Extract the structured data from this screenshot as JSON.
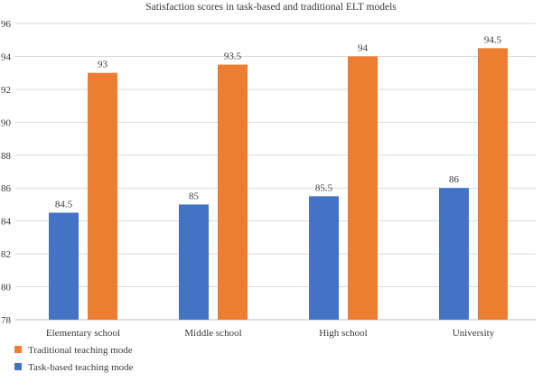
{
  "chart_data": {
    "type": "bar",
    "title": "Satisfaction scores in task-based and traditional ELT models",
    "categories": [
      "Elementary school",
      "Middle school",
      "High school",
      "University"
    ],
    "series": [
      {
        "name": "Task-based teaching mode",
        "values": [
          84.5,
          85,
          85.5,
          86
        ],
        "color": "#4472c4"
      },
      {
        "name": "Traditional teaching mode",
        "values": [
          93,
          93.5,
          94,
          94.5
        ],
        "color": "#ed7d31"
      }
    ],
    "xlabel": "",
    "ylabel": "",
    "ylim": [
      78,
      96
    ],
    "yticks": [
      78,
      80,
      82,
      84,
      86,
      88,
      90,
      92,
      94,
      96
    ],
    "grid": true,
    "legend_position": "bottom-left"
  }
}
